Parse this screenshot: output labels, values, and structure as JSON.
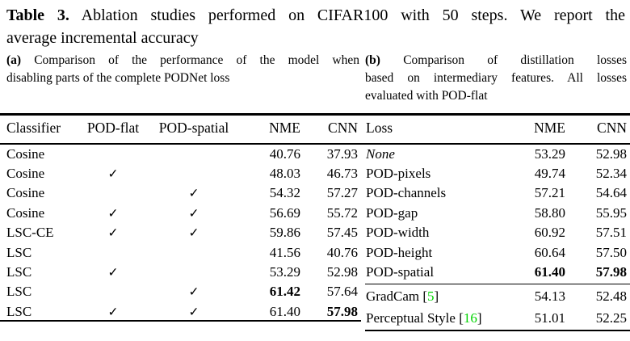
{
  "title": {
    "tag": "Table 3.",
    "line1_rest": "Ablation studies performed on CIFAR100 with 50 steps. We report the",
    "line2": "average incremental accuracy"
  },
  "caption_a": {
    "tag": "(a)",
    "lines": [
      "Comparison of the performance of the model when",
      "disabling parts of the complete PODNet loss"
    ]
  },
  "caption_b": {
    "tag": "(b)",
    "lines": [
      "Comparison of distillation losses",
      "based on intermediary features. All losses",
      "evaluated with POD-flat"
    ]
  },
  "check_glyph": "✓",
  "colors": {
    "text": "#000000",
    "background": "#ffffff",
    "citation_green": "#00D300"
  },
  "left_table": {
    "headers": [
      "Classifier",
      "POD-flat",
      "POD-spatial",
      "NME",
      "CNN"
    ],
    "rows": [
      {
        "classifier": "Cosine",
        "pod_flat": false,
        "pod_spatial": false,
        "nme": "40.76",
        "cnn": "37.93",
        "nme_bold": false,
        "cnn_bold": false
      },
      {
        "classifier": "Cosine",
        "pod_flat": true,
        "pod_spatial": false,
        "nme": "48.03",
        "cnn": "46.73",
        "nme_bold": false,
        "cnn_bold": false
      },
      {
        "classifier": "Cosine",
        "pod_flat": false,
        "pod_spatial": true,
        "nme": "54.32",
        "cnn": "57.27",
        "nme_bold": false,
        "cnn_bold": false
      },
      {
        "classifier": "Cosine",
        "pod_flat": true,
        "pod_spatial": true,
        "nme": "56.69",
        "cnn": "55.72",
        "nme_bold": false,
        "cnn_bold": false
      },
      {
        "classifier": "LSC-CE",
        "pod_flat": true,
        "pod_spatial": true,
        "nme": "59.86",
        "cnn": "57.45",
        "nme_bold": false,
        "cnn_bold": false
      },
      {
        "classifier": "LSC",
        "pod_flat": false,
        "pod_spatial": false,
        "nme": "41.56",
        "cnn": "40.76",
        "nme_bold": false,
        "cnn_bold": false
      },
      {
        "classifier": "LSC",
        "pod_flat": true,
        "pod_spatial": false,
        "nme": "53.29",
        "cnn": "52.98",
        "nme_bold": false,
        "cnn_bold": false
      },
      {
        "classifier": "LSC",
        "pod_flat": false,
        "pod_spatial": true,
        "nme": "61.42",
        "cnn": "57.64",
        "nme_bold": true,
        "cnn_bold": false
      },
      {
        "classifier": "LSC",
        "pod_flat": true,
        "pod_spatial": true,
        "nme": "61.40",
        "cnn": "57.98",
        "nme_bold": false,
        "cnn_bold": true
      }
    ]
  },
  "right_table": {
    "headers": [
      "Loss",
      "NME",
      "CNN"
    ],
    "rows": [
      {
        "loss": "None",
        "italic": true,
        "nme": "53.29",
        "cnn": "52.98",
        "bold": false
      },
      {
        "loss": "POD-pixels",
        "italic": false,
        "nme": "49.74",
        "cnn": "52.34",
        "bold": false
      },
      {
        "loss": "POD-channels",
        "italic": false,
        "nme": "57.21",
        "cnn": "54.64",
        "bold": false
      },
      {
        "loss": "POD-gap",
        "italic": false,
        "nme": "58.80",
        "cnn": "55.95",
        "bold": false
      },
      {
        "loss": "POD-width",
        "italic": false,
        "nme": "60.92",
        "cnn": "57.51",
        "bold": false
      },
      {
        "loss": "POD-height",
        "italic": false,
        "nme": "60.64",
        "cnn": "57.50",
        "bold": false
      },
      {
        "loss": "POD-spatial",
        "italic": false,
        "nme": "61.40",
        "cnn": "57.98",
        "bold": true
      }
    ],
    "baseline_rows": [
      {
        "loss": "GradCam",
        "citation": "5",
        "nme": "54.13",
        "cnn": "52.48"
      },
      {
        "loss": "Perceptual Style",
        "citation": "16",
        "nme": "51.01",
        "cnn": "52.25"
      }
    ]
  }
}
